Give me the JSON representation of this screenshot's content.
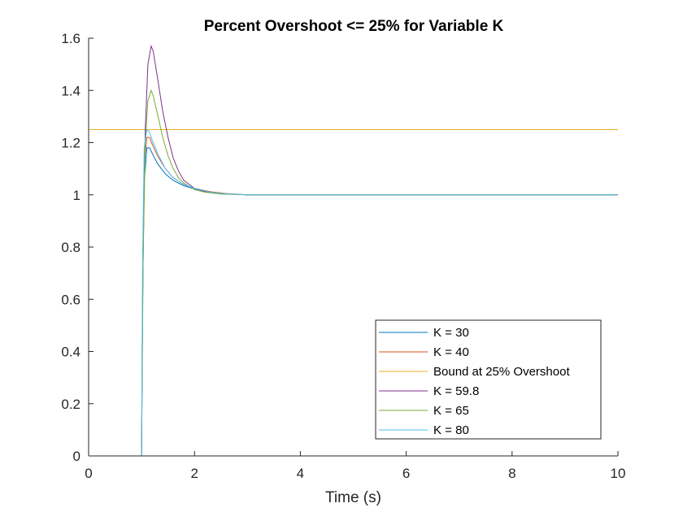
{
  "chart_data": {
    "type": "line",
    "title": "Percent Overshoot <= 25% for Variable K",
    "xlabel": "Time (s)",
    "ylabel": "",
    "xlim": [
      0,
      10
    ],
    "ylim": [
      0,
      1.6
    ],
    "xticks": [
      0,
      2,
      4,
      6,
      8,
      10
    ],
    "xtick_labels": [
      "0",
      "2",
      "4",
      "6",
      "8",
      "10"
    ],
    "yticks": [
      0,
      0.2,
      0.4,
      0.6,
      0.8,
      1.0,
      1.2,
      1.4,
      1.6
    ],
    "ytick_labels": [
      "0",
      "0.2",
      "0.4",
      "0.6",
      "0.8",
      "1",
      "1.2",
      "1.4",
      "1.6"
    ],
    "grid": false,
    "legend_position": "bottom-right",
    "series": [
      {
        "name": "K = 30",
        "color": "#0072BD",
        "x": [
          0,
          1.0,
          1.02,
          1.05,
          1.1,
          1.15,
          1.2,
          1.3,
          1.45,
          1.6,
          1.8,
          2.0,
          2.3,
          2.6,
          3.0,
          4,
          6,
          8,
          10
        ],
        "y": [
          0,
          0,
          0.6,
          1.05,
          1.18,
          1.18,
          1.16,
          1.12,
          1.08,
          1.055,
          1.035,
          1.022,
          1.01,
          1.004,
          1.0,
          1.0,
          1.0,
          1.0,
          1.0
        ]
      },
      {
        "name": "K = 40",
        "color": "#D95319",
        "x": [
          0,
          1.0,
          1.02,
          1.05,
          1.1,
          1.15,
          1.2,
          1.3,
          1.45,
          1.6,
          1.8,
          2.0,
          2.3,
          2.6,
          3.0,
          4,
          6,
          8,
          10
        ],
        "y": [
          0,
          0,
          0.7,
          1.12,
          1.22,
          1.22,
          1.195,
          1.15,
          1.1,
          1.065,
          1.04,
          1.025,
          1.012,
          1.005,
          1.0,
          1.0,
          1.0,
          1.0,
          1.0
        ]
      },
      {
        "name": "Bound at 25% Overshoot",
        "color": "#EDB120",
        "x": [
          0,
          10
        ],
        "y": [
          1.25,
          1.25
        ]
      },
      {
        "name": "K = 59.8",
        "color": "#7E2F8E",
        "x": [
          0,
          1.0,
          1.03,
          1.07,
          1.12,
          1.18,
          1.22,
          1.3,
          1.4,
          1.5,
          1.6,
          1.7,
          1.8,
          2.0,
          2.2,
          2.5,
          3.0,
          4,
          6,
          8,
          10
        ],
        "y": [
          0,
          0,
          0.8,
          1.25,
          1.5,
          1.57,
          1.55,
          1.45,
          1.32,
          1.22,
          1.14,
          1.09,
          1.055,
          1.025,
          1.012,
          1.004,
          1.0,
          1.0,
          1.0,
          1.0,
          1.0
        ]
      },
      {
        "name": "K = 65",
        "color": "#77AC30",
        "x": [
          0,
          1.0,
          1.03,
          1.07,
          1.12,
          1.18,
          1.22,
          1.3,
          1.4,
          1.5,
          1.6,
          1.7,
          1.8,
          2.0,
          2.2,
          2.5,
          3.0,
          4,
          6,
          8,
          10
        ],
        "y": [
          0,
          0,
          0.75,
          1.2,
          1.36,
          1.4,
          1.38,
          1.31,
          1.22,
          1.15,
          1.1,
          1.065,
          1.045,
          1.02,
          1.01,
          1.003,
          1.0,
          1.0,
          1.0,
          1.0,
          1.0
        ]
      },
      {
        "name": "K = 80",
        "color": "#4DBEEE",
        "x": [
          0,
          1.0,
          1.02,
          1.05,
          1.1,
          1.15,
          1.2,
          1.3,
          1.45,
          1.6,
          1.8,
          2.0,
          2.3,
          2.6,
          3.0,
          4,
          6,
          8,
          10
        ],
        "y": [
          0,
          0,
          0.75,
          1.18,
          1.25,
          1.24,
          1.21,
          1.16,
          1.1,
          1.065,
          1.04,
          1.025,
          1.01,
          1.004,
          1.0,
          1.0,
          1.0,
          1.0,
          1.0
        ]
      }
    ]
  }
}
